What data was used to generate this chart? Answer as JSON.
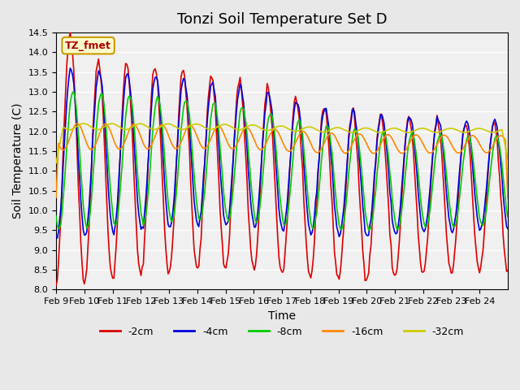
{
  "title": "Tonzi Soil Temperature Set D",
  "xlabel": "Time",
  "ylabel": "Soil Temperature (C)",
  "ylim": [
    8.0,
    14.5
  ],
  "yticks": [
    8.0,
    8.5,
    9.0,
    9.5,
    10.0,
    10.5,
    11.0,
    11.5,
    12.0,
    12.5,
    13.0,
    13.5,
    14.0,
    14.5
  ],
  "xtick_labels": [
    "Feb 9",
    "Feb 10",
    "Feb 11",
    "Feb 12",
    "Feb 13",
    "Feb 14",
    "Feb 15",
    "Feb 16",
    "Feb 17",
    "Feb 18",
    "Feb 19",
    "Feb 20",
    "Feb 21",
    "Feb 22",
    "Feb 23",
    "Feb 24"
  ],
  "legend_label": "TZ_fmet",
  "legend_bg": "#ffffcc",
  "legend_border": "#cc9900",
  "series_colors": {
    "-2cm": "#dd0000",
    "-4cm": "#0000dd",
    "-8cm": "#00cc00",
    "-16cm": "#ff8800",
    "-32cm": "#cccc00"
  },
  "background_color": "#e8e8e8",
  "plot_bg": "#f0f0f0",
  "grid_color": "#ffffff",
  "title_fontsize": 13,
  "axis_fontsize": 10,
  "tick_fontsize": 8
}
